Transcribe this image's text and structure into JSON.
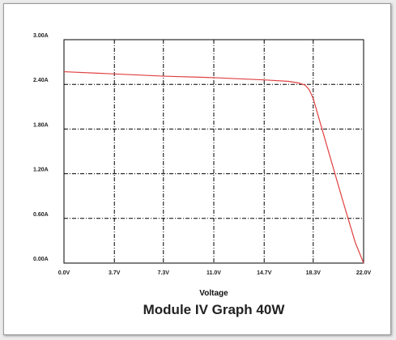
{
  "chart_data": {
    "type": "line",
    "title": "Module IV Graph 40W",
    "xlabel": "Voltage",
    "ylabel": "",
    "xlim": [
      0,
      22
    ],
    "ylim": [
      0,
      3
    ],
    "x_ticks": [
      0.0,
      3.7,
      7.3,
      11.0,
      14.7,
      18.3,
      22.0
    ],
    "x_tick_labels": [
      "0.0V",
      "3.7V",
      "7.3V",
      "11.0V",
      "14.7V",
      "18.3V",
      "22.0V"
    ],
    "y_ticks": [
      0.0,
      0.6,
      1.2,
      1.8,
      2.4,
      3.0
    ],
    "y_tick_labels": [
      "0.00A",
      "0.60A",
      "1.20A",
      "1.80A",
      "2.40A",
      "3.00A"
    ],
    "grid": true,
    "colors": {
      "curve": "#e04040",
      "grid": "#000000",
      "axis": "#000000"
    },
    "series": [
      {
        "x": [
          0.0,
          3.7,
          7.3,
          11.0,
          14.7,
          16.5,
          17.2,
          17.7,
          18.0,
          18.3,
          19.5,
          20.5,
          21.4,
          22.0
        ],
        "y": [
          2.57,
          2.54,
          2.51,
          2.49,
          2.46,
          2.44,
          2.42,
          2.39,
          2.33,
          2.21,
          1.45,
          0.82,
          0.27,
          0.0
        ]
      }
    ]
  }
}
